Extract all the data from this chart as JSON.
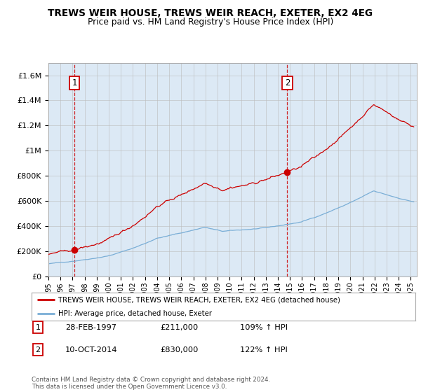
{
  "title": "TREWS WEIR HOUSE, TREWS WEIR REACH, EXETER, EX2 4EG",
  "subtitle": "Price paid vs. HM Land Registry's House Price Index (HPI)",
  "background_color": "#ffffff",
  "plot_bg_color": "#dce9f5",
  "red_line_color": "#cc0000",
  "blue_line_color": "#7aaed6",
  "ylim": [
    0,
    1700000
  ],
  "xlim_start": 1995.0,
  "xlim_end": 2025.5,
  "sale1_year": 1997.167,
  "sale1_price": 211000,
  "sale2_year": 2014.78,
  "sale2_price": 830000,
  "legend_red_label": "TREWS WEIR HOUSE, TREWS WEIR REACH, EXETER, EX2 4EG (detached house)",
  "legend_blue_label": "HPI: Average price, detached house, Exeter",
  "note1_num": "1",
  "note1_date": "28-FEB-1997",
  "note1_price": "£211,000",
  "note1_hpi": "109% ↑ HPI",
  "note2_num": "2",
  "note2_date": "10-OCT-2014",
  "note2_price": "£830,000",
  "note2_hpi": "122% ↑ HPI",
  "footer": "Contains HM Land Registry data © Crown copyright and database right 2024.\nThis data is licensed under the Open Government Licence v3.0.",
  "ytick_labels": [
    "£0",
    "£200K",
    "£400K",
    "£600K",
    "£800K",
    "£1M",
    "£1.2M",
    "£1.4M",
    "£1.6M"
  ],
  "ytick_values": [
    0,
    200000,
    400000,
    600000,
    800000,
    1000000,
    1200000,
    1400000,
    1600000
  ]
}
